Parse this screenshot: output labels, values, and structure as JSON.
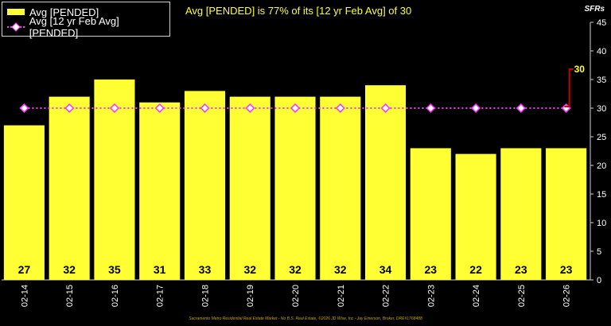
{
  "chart_data": {
    "type": "bar",
    "title": "Avg [PENDED] is 77% of its [12 yr Feb Avg] of 30",
    "unit_label": "SFRs",
    "categories": [
      "02-14",
      "02-15",
      "02-16",
      "02-17",
      "02-18",
      "02-19",
      "02-20",
      "02-21",
      "02-22",
      "02-23",
      "02-24",
      "02-25",
      "02-26"
    ],
    "series": [
      {
        "name": "Avg [PENDED]",
        "type": "bar",
        "color": "#ffff33",
        "values": [
          27,
          32,
          35,
          31,
          33,
          32,
          32,
          32,
          34,
          23,
          22,
          23,
          23
        ]
      },
      {
        "name": "Avg [12 yr Feb Avg] [PENDED]",
        "type": "line",
        "color": "#ff33ff",
        "values": [
          30,
          30,
          30,
          30,
          30,
          30,
          30,
          30,
          30,
          30,
          30,
          30,
          30
        ]
      }
    ],
    "ylim": [
      0,
      45
    ],
    "yticks": [
      0,
      5,
      10,
      15,
      20,
      25,
      30,
      35,
      40,
      45
    ],
    "y_axis_position": "right",
    "grid": false,
    "legend_position": "top-left",
    "annotation": {
      "text": "30",
      "color": "#ffff33",
      "arrow_color": "#cc0000"
    }
  },
  "footer": "Sacramento Metro Residential Real Estate Market - No B.S. Real Estate, ©2026 JD Wise, Inc - Jay Emerson, Broker, DRE#1768488"
}
